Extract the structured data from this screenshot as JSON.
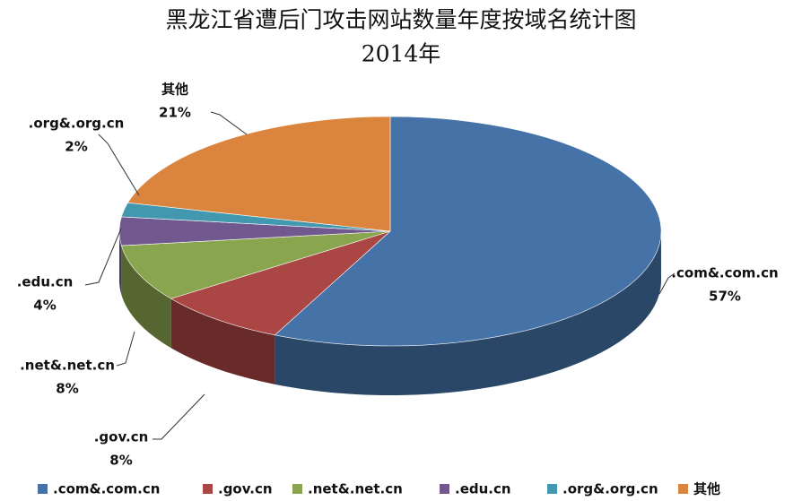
{
  "chart_data": {
    "type": "pie3d",
    "title": "黑龙江省遭后门攻击网站数量年度按域名统计图",
    "subtitle": "2014年",
    "categories": [
      ".com&.com.cn",
      ".gov.cn",
      ".net&.net.cn",
      ".edu.cn",
      ".org&.org.cn",
      "其他"
    ],
    "values": [
      57,
      8,
      8,
      4,
      2,
      21
    ],
    "value_labels": [
      "57%",
      "8%",
      "8%",
      "4%",
      "2%",
      "21%"
    ],
    "colors": [
      "#4572a7",
      "#aa4643",
      "#89a54e",
      "#71588f",
      "#4198af",
      "#db843d"
    ],
    "legend": "bottom"
  }
}
